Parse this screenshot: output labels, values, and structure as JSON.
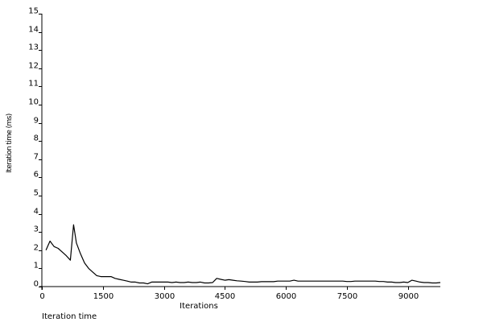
{
  "chart_data": {
    "type": "line",
    "title": "",
    "caption": "Iteration time",
    "xlabel": "Iterations",
    "ylabel": "Iteration time (ms)",
    "xlim": [
      0,
      9800
    ],
    "ylim": [
      0,
      15
    ],
    "x_ticks": [
      0,
      1500,
      3000,
      4500,
      6000,
      7500,
      9000
    ],
    "y_ticks": [
      0,
      1,
      2,
      3,
      4,
      5,
      6,
      7,
      8,
      9,
      10,
      11,
      12,
      13,
      14,
      15
    ],
    "grid": false,
    "series": [
      {
        "color": "#000000",
        "x": [
          100,
          200,
          300,
          400,
          500,
          600,
          700,
          780,
          850,
          950,
          1050,
          1150,
          1250,
          1350,
          1450,
          1550,
          1700,
          1800,
          1900,
          2000,
          2100,
          2200,
          2300,
          2400,
          2500,
          2600,
          2700,
          2800,
          2900,
          3000,
          3100,
          3200,
          3300,
          3400,
          3500,
          3600,
          3700,
          3800,
          3900,
          4000,
          4100,
          4200,
          4300,
          4400,
          4500,
          4600,
          4700,
          4800,
          4900,
          5000,
          5100,
          5200,
          5300,
          5400,
          5500,
          5600,
          5700,
          5800,
          5900,
          6000,
          6100,
          6200,
          6300,
          6400,
          6500,
          6600,
          6700,
          6800,
          7000,
          7200,
          7400,
          7500,
          7600,
          7700,
          7800,
          8000,
          8200,
          8300,
          8400,
          8500,
          8600,
          8700,
          8800,
          8900,
          9000,
          9100,
          9200,
          9300,
          9400,
          9500,
          9600,
          9700,
          9800
        ],
        "y": [
          2.0,
          2.5,
          2.2,
          2.1,
          1.9,
          1.7,
          1.45,
          3.4,
          2.4,
          1.8,
          1.3,
          1.0,
          0.8,
          0.6,
          0.55,
          0.55,
          0.55,
          0.45,
          0.4,
          0.35,
          0.3,
          0.25,
          0.25,
          0.2,
          0.2,
          0.15,
          0.25,
          0.25,
          0.25,
          0.25,
          0.25,
          0.22,
          0.25,
          0.22,
          0.22,
          0.25,
          0.22,
          0.22,
          0.25,
          0.2,
          0.2,
          0.22,
          0.45,
          0.4,
          0.35,
          0.38,
          0.35,
          0.32,
          0.3,
          0.28,
          0.25,
          0.25,
          0.25,
          0.27,
          0.27,
          0.27,
          0.27,
          0.3,
          0.3,
          0.3,
          0.3,
          0.35,
          0.3,
          0.3,
          0.3,
          0.3,
          0.3,
          0.3,
          0.3,
          0.3,
          0.3,
          0.28,
          0.28,
          0.3,
          0.3,
          0.3,
          0.3,
          0.28,
          0.28,
          0.25,
          0.25,
          0.22,
          0.22,
          0.25,
          0.22,
          0.35,
          0.3,
          0.25,
          0.22,
          0.22,
          0.2,
          0.2,
          0.22
        ]
      }
    ]
  }
}
